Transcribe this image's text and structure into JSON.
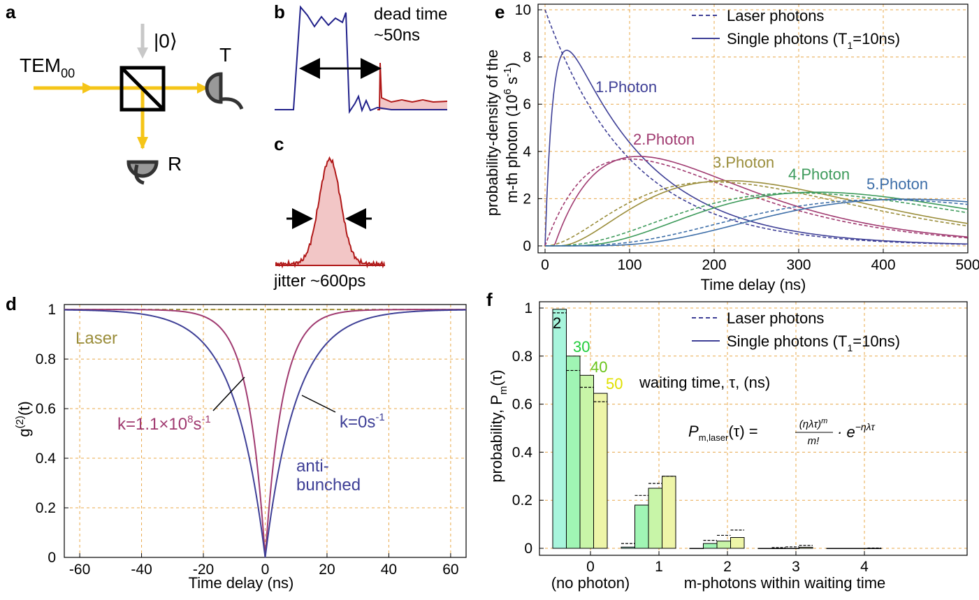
{
  "panels": {
    "a": {
      "label": "a",
      "input_beam": "TEM",
      "input_sub": "00",
      "vacuum_ket": "|0⟩",
      "port_T": "T",
      "port_R": "R"
    },
    "b": {
      "label": "b",
      "annotation_line1": "dead time",
      "annotation_line2": "~50ns"
    },
    "c": {
      "label": "c",
      "annotation": "jitter ~600ps"
    },
    "d": {
      "label": "d",
      "xlabel": "Time delay (ns)",
      "ylabel_main": "g",
      "ylabel_sup": "(2)",
      "ylabel_tail": "(t)",
      "laser_label": "Laser",
      "k1_main": "k=1.1×10",
      "k1_sup1": "8",
      "k1_s": "s",
      "k1_sup2": "-1",
      "k0_main": "k=0s",
      "k0_sup": "-1",
      "anti_line1": "anti-",
      "anti_line2": "bunched",
      "xticks": [
        "-60",
        "-40",
        "-20",
        "0",
        "20",
        "40",
        "60"
      ],
      "yticks": [
        "0",
        "0.2",
        "0.4",
        "0.6",
        "0.8",
        "1"
      ]
    },
    "e": {
      "label": "e",
      "xlabel": "Time delay (ns)",
      "ylabel_line1": "probability-density of the",
      "ylabel_line2": "m-th photon (10",
      "ylabel_sup1": "6",
      "ylabel_s": " s",
      "ylabel_sup2": "-1",
      "ylabel_close": ")",
      "legend_laser": "Laser photons",
      "legend_single": "Single photons (T",
      "legend_sub": "1",
      "legend_tail": "=10ns)",
      "photon_labels": [
        "1.Photon",
        "2.Photon",
        "3.Photon",
        "4.Photon",
        "5.Photon"
      ],
      "xticks": [
        "0",
        "100",
        "200",
        "300",
        "400",
        "500"
      ],
      "yticks": [
        "0",
        "2",
        "4",
        "6",
        "8",
        "10"
      ]
    },
    "f": {
      "label": "f",
      "ylabel_main": "probability, P",
      "ylabel_sub": "m",
      "ylabel_tail": "(τ)",
      "xlabel_left": "(no photon)",
      "xlabel_right": "m-photons within waiting time",
      "legend_laser": "Laser photons",
      "legend_single": "Single photons (T",
      "legend_sub": "1",
      "legend_tail": "=10ns)",
      "waiting_label": "waiting time, τ, (ns)",
      "waiting_values": [
        "2",
        "30",
        "40",
        "50"
      ],
      "formula_lhs": "P",
      "formula_lhs_sub": "m,laser",
      "formula_arg": "(τ) =",
      "formula_num": "(ηλτ)",
      "formula_num_sup": "m",
      "formula_den": "m!",
      "formula_mid": "· e",
      "formula_exp": "−ηλτ",
      "xticks": [
        "0",
        "1",
        "2",
        "3",
        "4"
      ],
      "yticks": [
        "0",
        "0.2",
        "0.4",
        "0.6",
        "0.8",
        "1"
      ]
    }
  },
  "colors": {
    "beam": "#f5c518",
    "blue": "#3e3f96",
    "magenta": "#a03a70",
    "olive": "#9a8d3a",
    "green": "#3c9a5a",
    "steelblue": "#3d6ea8",
    "darkred": "#b01818",
    "grid": "#e8a84a"
  },
  "chart_data": [
    {
      "type": "line",
      "panel": "d",
      "xlabel": "Time delay (ns)",
      "ylabel": "g(2)(t)",
      "xlim": [
        -65,
        65
      ],
      "ylim": [
        0,
        1.02
      ],
      "series": [
        {
          "name": "Laser",
          "style": "dashed",
          "color": "#9a8d3a",
          "x": [
            -65,
            65
          ],
          "y": [
            1,
            1
          ]
        },
        {
          "name": "k=1.1×10^8s^-1",
          "color": "#a03a70",
          "T_ns": 10,
          "x": [
            -65,
            -30,
            -20,
            -10,
            -5,
            0,
            5,
            10,
            20,
            30,
            65
          ],
          "y": [
            1,
            0.98,
            0.89,
            0.63,
            0.39,
            0,
            0.39,
            0.63,
            0.89,
            0.98,
            1
          ]
        },
        {
          "name": "k=0s^-1",
          "color": "#3e3f96",
          "T_ns": 5,
          "x": [
            -65,
            -30,
            -20,
            -10,
            -5,
            0,
            5,
            10,
            20,
            30,
            65
          ],
          "y": [
            1,
            0.95,
            0.86,
            0.63,
            0.39,
            0,
            0.39,
            0.63,
            0.86,
            0.95,
            1
          ]
        }
      ]
    },
    {
      "type": "line",
      "panel": "e",
      "xlabel": "Time delay (ns)",
      "ylabel": "probability-density of the m-th photon (10^6 s^-1)",
      "xlim": [
        0,
        500
      ],
      "ylim": [
        0,
        10
      ],
      "series": [
        {
          "name": "1.Photon laser",
          "style": "dashed",
          "rate_per_ns": 0.01,
          "m": 1,
          "x": [
            0,
            100,
            200,
            300,
            400,
            500
          ],
          "y": [
            10,
            3.68,
            1.35,
            0.5,
            0.18,
            0.07
          ]
        },
        {
          "name": "1.Photon single",
          "m": 1,
          "x": [
            0,
            25,
            100,
            200,
            300,
            500
          ],
          "y": [
            0,
            8.4,
            3.9,
            1.4,
            0.5,
            0.07
          ]
        },
        {
          "name": "2.Photon laser",
          "style": "dashed",
          "m": 2,
          "x": [
            0,
            100,
            200,
            300,
            400,
            500
          ],
          "y": [
            0,
            3.68,
            2.71,
            1.49,
            0.73,
            0.34
          ]
        },
        {
          "name": "2.Photon single",
          "m": 2,
          "x": [
            0,
            110,
            200,
            300,
            400,
            500
          ],
          "y": [
            0,
            4.05,
            2.8,
            1.55,
            0.75,
            0.35
          ]
        },
        {
          "name": "3.Photon laser",
          "style": "dashed",
          "m": 3,
          "x": [
            0,
            100,
            200,
            300,
            400,
            500
          ],
          "y": [
            0,
            1.84,
            2.71,
            2.24,
            1.47,
            0.84
          ]
        },
        {
          "name": "3.Photon single",
          "m": 3,
          "x": [
            0,
            100,
            210,
            300,
            400,
            500
          ],
          "y": [
            0,
            1.7,
            2.95,
            2.35,
            1.5,
            0.85
          ]
        },
        {
          "name": "4.Photon laser",
          "style": "dashed",
          "m": 4,
          "x": [
            0,
            100,
            200,
            300,
            400,
            500
          ],
          "y": [
            0,
            0.61,
            1.8,
            2.24,
            1.95,
            1.4
          ]
        },
        {
          "name": "4.Photon single",
          "m": 4,
          "x": [
            0,
            100,
            200,
            310,
            400,
            500
          ],
          "y": [
            0,
            0.5,
            1.7,
            2.3,
            2.0,
            1.45
          ]
        },
        {
          "name": "5.Photon laser",
          "style": "dashed",
          "m": 5,
          "x": [
            0,
            100,
            200,
            300,
            400,
            500
          ],
          "y": [
            0,
            0.15,
            0.9,
            1.68,
            1.95,
            1.75
          ]
        },
        {
          "name": "5.Photon single",
          "m": 5,
          "x": [
            0,
            100,
            200,
            300,
            410,
            500
          ],
          "y": [
            0,
            0.1,
            0.8,
            1.65,
            2.05,
            1.8
          ]
        }
      ]
    },
    {
      "type": "bar",
      "panel": "f",
      "xlabel": "m-photons within waiting time",
      "ylabel": "probability, Pm(τ)",
      "ylim": [
        0,
        1
      ],
      "categories": [
        "0",
        "1",
        "2",
        "3",
        "4"
      ],
      "waiting_times_ns": [
        2,
        30,
        40,
        50
      ],
      "single_photons": [
        [
          0.995,
          0.8,
          0.72,
          0.645
        ],
        [
          0.005,
          0.18,
          0.25,
          0.3
        ],
        [
          0,
          0.02,
          0.03,
          0.045
        ],
        [
          0,
          0,
          0,
          0.004
        ],
        [
          0,
          0,
          0,
          0
        ]
      ],
      "laser_photons": [
        [
          0.98,
          0.74,
          0.67,
          0.61
        ],
        [
          0.02,
          0.22,
          0.27,
          0.3
        ],
        [
          0,
          0.033,
          0.054,
          0.076
        ],
        [
          0,
          0.003,
          0.006,
          0.012
        ],
        [
          0,
          0,
          0,
          0.001
        ]
      ]
    }
  ]
}
